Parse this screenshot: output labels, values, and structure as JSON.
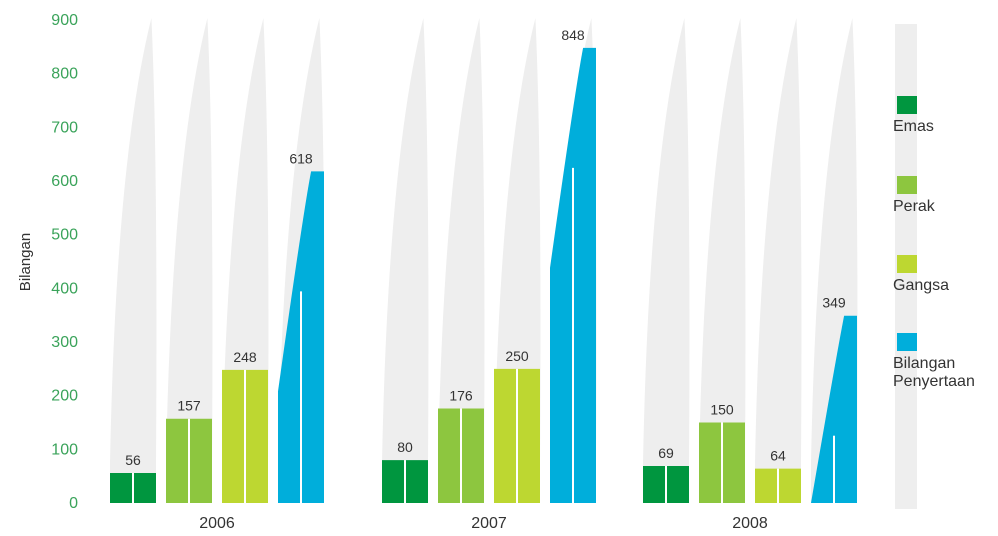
{
  "chart_data": {
    "type": "bar",
    "title": "",
    "xlabel": "",
    "ylabel": "Bilangan",
    "ylim": [
      0,
      900
    ],
    "yticks": [
      "0",
      "100",
      "200",
      "300",
      "400",
      "500",
      "600",
      "700",
      "800",
      "900"
    ],
    "categories": [
      "2006",
      "2007",
      "2008"
    ],
    "series": [
      {
        "name": "Emas",
        "color": "#00963f",
        "values": [
          56,
          80,
          69
        ]
      },
      {
        "name": "Perak",
        "color": "#8dc63f",
        "values": [
          157,
          176,
          150
        ]
      },
      {
        "name": "Gangsa",
        "color": "#bdd731",
        "values": [
          248,
          250,
          64
        ]
      },
      {
        "name": "Bilangan Penyertaan",
        "color": "#00aedb",
        "values": [
          618,
          848,
          349
        ]
      }
    ],
    "legend_position": "right",
    "colors": {
      "axis_text": "#3aa35a",
      "background_shape": "#eeeeee",
      "text": "#333333"
    }
  }
}
